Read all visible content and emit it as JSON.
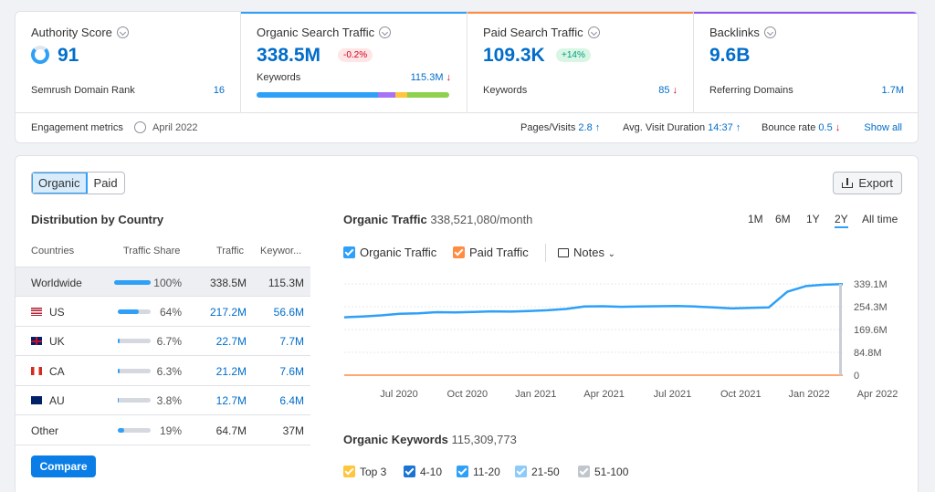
{
  "metrics": {
    "authority": {
      "title": "Authority Score",
      "value": "91",
      "sub_label": "Semrush Domain Rank",
      "sub_value": "16"
    },
    "organic": {
      "title": "Organic Search Traffic",
      "value": "338.5M",
      "badge": "-0.2%",
      "sub_label": "Keywords",
      "sub_value": "115.3M",
      "sub_arrow": "↓"
    },
    "paid": {
      "title": "Paid Search Traffic",
      "value": "109.3K",
      "badge": "+14%",
      "sub_label": "Keywords",
      "sub_value": "85",
      "sub_arrow": "↓"
    },
    "backlinks": {
      "title": "Backlinks",
      "value": "9.6B",
      "sub_label": "Referring Domains",
      "sub_value": "1.7M"
    },
    "colors": {
      "organic": "#2ea0f8",
      "paid": "#ff8c43",
      "backlinks": "#8e56ef",
      "authority": "#d5d9df"
    }
  },
  "engagement": {
    "label": "Engagement metrics",
    "date": "April 2022",
    "pages_label": "Pages/Visits",
    "pages_value": "2.8",
    "pages_arrow": "↑",
    "duration_label": "Avg. Visit Duration",
    "duration_value": "14:37",
    "duration_arrow": "↑",
    "bounce_label": "Bounce rate",
    "bounce_value": "0.5",
    "bounce_arrow": "↓",
    "show_all": "Show all"
  },
  "tabs": {
    "organic": "Organic",
    "paid": "Paid"
  },
  "export_label": "Export",
  "distribution": {
    "title": "Distribution by Country",
    "headers": [
      "Countries",
      "Traffic Share",
      "Traffic",
      "Keywor..."
    ],
    "rows": [
      {
        "name": "Worldwide",
        "share": "100%",
        "share_value": 100,
        "traffic": "338.5M",
        "keywords": "115.3M"
      },
      {
        "name": "US",
        "share": "64%",
        "share_value": 64,
        "traffic": "217.2M",
        "keywords": "56.6M"
      },
      {
        "name": "UK",
        "share": "6.7%",
        "share_value": 6.7,
        "traffic": "22.7M",
        "keywords": "7.7M"
      },
      {
        "name": "CA",
        "share": "6.3%",
        "share_value": 6.3,
        "traffic": "21.2M",
        "keywords": "7.6M"
      },
      {
        "name": "AU",
        "share": "3.8%",
        "share_value": 3.8,
        "traffic": "12.7M",
        "keywords": "6.4M"
      },
      {
        "name": "Other",
        "share": "19%",
        "share_value": 19,
        "traffic": "64.7M",
        "keywords": "37M"
      }
    ],
    "compare_label": "Compare"
  },
  "chart_header": {
    "title": "Organic Traffic",
    "value": "338,521,080/month",
    "ranges": [
      "1M",
      "6M",
      "1Y",
      "2Y",
      "All time"
    ],
    "selected_range": "2Y",
    "legend_organic": "Organic Traffic",
    "legend_paid": "Paid Traffic",
    "notes": "Notes"
  },
  "chart_data": {
    "type": "line",
    "x_labels": [
      "Jul 2020",
      "Oct 2020",
      "Jan 2021",
      "Apr 2021",
      "Jul 2021",
      "Oct 2021",
      "Jan 2022",
      "Apr 2022"
    ],
    "y_ticks": [
      "339.1M",
      "254.3M",
      "169.6M",
      "84.8M",
      "0"
    ],
    "ylim": [
      0,
      339.1
    ],
    "series": [
      {
        "name": "Organic Traffic",
        "color": "#2ea0f8",
        "values": [
          215,
          218,
          222,
          228,
          230,
          234,
          233,
          235,
          237,
          236,
          238,
          241,
          246,
          255,
          256,
          254,
          255,
          256,
          257,
          255,
          252,
          248,
          250,
          252,
          310,
          331,
          336,
          338
        ]
      },
      {
        "name": "Paid Traffic",
        "color": "#ff8c43",
        "values": [
          0.1,
          0.1,
          0.1,
          0.1,
          0.1,
          0.1,
          0.1,
          0.1,
          0.1,
          0.1,
          0.1,
          0.1,
          0.1,
          0.1,
          0.1,
          0.1,
          0.1,
          0.1,
          0.1,
          0.1,
          0.1,
          0.1,
          0.1,
          0.1,
          0.1,
          0.1,
          0.1,
          0.1
        ]
      }
    ]
  },
  "keywords_header": {
    "title": "Organic Keywords",
    "value": "115,309,773",
    "legend": [
      {
        "label": "Top 3",
        "color": "#ffc53d"
      },
      {
        "label": "4-10",
        "color": "#1a75d2"
      },
      {
        "label": "11-20",
        "color": "#2ea0f8"
      },
      {
        "label": "21-50",
        "color": "#8ccbfa"
      },
      {
        "label": "51-100",
        "color": "#c1c6cd"
      }
    ]
  }
}
